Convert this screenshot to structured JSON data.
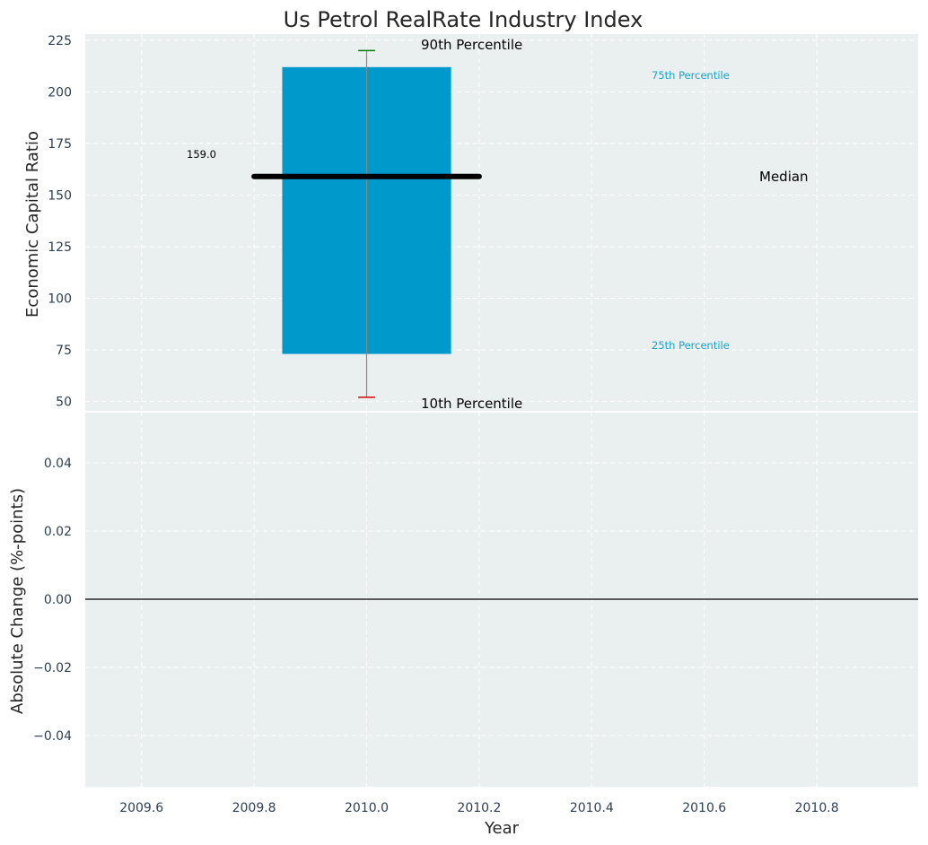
{
  "chart_data": [
    {
      "type": "box",
      "title": "Us Petrol RealRate Industry Index",
      "xlabel": "",
      "ylabel": "Economic Capital Ratio",
      "xlim": [
        2009.5,
        2010.98
      ],
      "ylim": [
        45,
        228
      ],
      "yticks": [
        50,
        75,
        100,
        125,
        150,
        175,
        200,
        225
      ],
      "grid": true,
      "box": {
        "x": 2010.0,
        "p10": 52,
        "p25": 73,
        "median": 159.0,
        "p75": 212,
        "p90": 220
      },
      "median_label": "159.0",
      "annotations": {
        "p90": "90th Percentile",
        "p75": "75th Percentile",
        "median": "Median",
        "p25": "25th Percentile",
        "p10": "10th Percentile"
      }
    },
    {
      "type": "line",
      "xlabel": "Year",
      "ylabel": "Absolute Change (%-points)",
      "xlim": [
        2009.5,
        2010.98
      ],
      "ylim": [
        -0.055,
        0.055
      ],
      "xticks": [
        2009.6,
        2009.8,
        2010.0,
        2010.2,
        2010.4,
        2010.6,
        2010.8
      ],
      "xtick_labels": [
        "2009.6",
        "2009.8",
        "2010.0",
        "2010.2",
        "2010.4",
        "2010.6",
        "2010.8"
      ],
      "yticks": [
        -0.04,
        -0.02,
        0.0,
        0.02,
        0.04
      ],
      "ytick_labels": [
        "−0.04",
        "−0.02",
        "0.00",
        "0.02",
        "0.04"
      ],
      "zero_line": 0,
      "grid": true,
      "series": []
    }
  ],
  "colors": {
    "panel_bg": "#eaeff0",
    "box_fill": "#0099cc",
    "median": "#000000",
    "whisker": "#888888",
    "p90_cap": "#008000",
    "p10_cap": "#dd0000",
    "annot_small": "#1aa3c8",
    "tick_text": "#2e3f52",
    "title_text": "#262626"
  }
}
